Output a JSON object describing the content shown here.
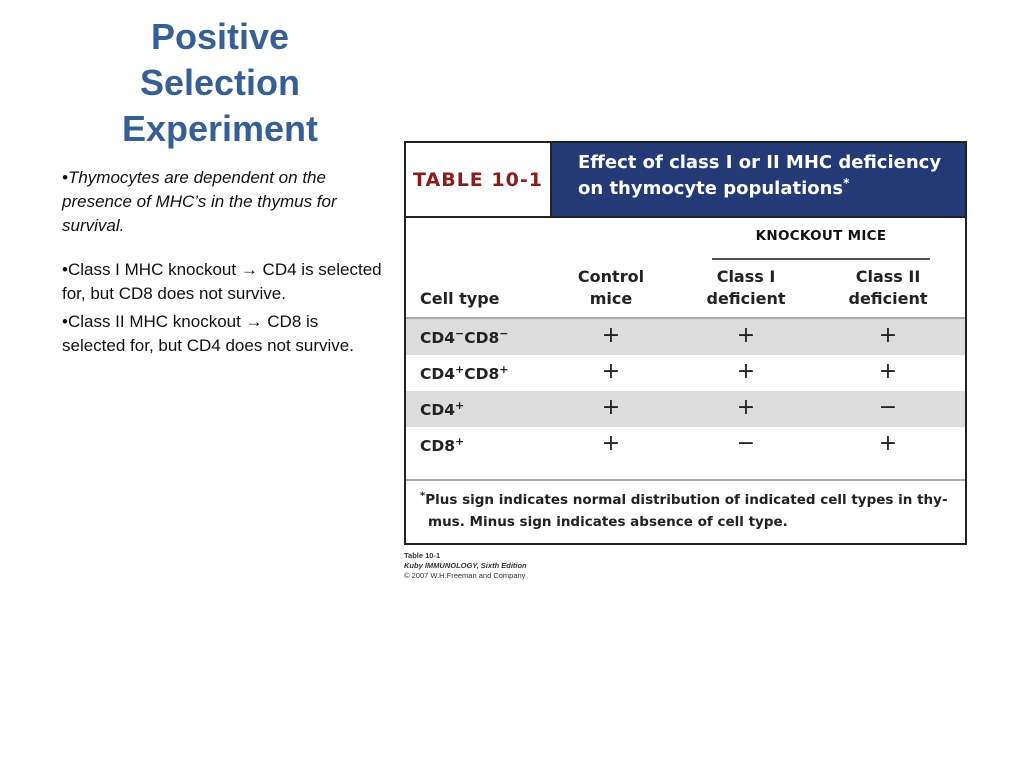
{
  "title": {
    "line1": "Positive",
    "line2": "Selection",
    "line3": "Experiment"
  },
  "bullets": [
    "•Thymocytes are dependent on the presence of MHC’s in the thymus for survival.",
    "•Class I MHC knockout → CD4 is selected for, but CD8 does not survive.",
    "•Class II MHC knockout → CD8 is selected for, but CD4 does not survive."
  ],
  "table": {
    "label": "TABLE 10-1",
    "caption_line1": "Effect of class I or II MHC deficiency",
    "caption_line2": "on thymocyte populations",
    "caption_mark": "*",
    "group_header": "KNOCKOUT MICE",
    "col_cell_type": "Cell type",
    "col_control": [
      "Control",
      "mice"
    ],
    "col_class1": [
      "Class I",
      "deficient"
    ],
    "col_class2": [
      "Class II",
      "deficient"
    ],
    "rows": [
      {
        "base1": "CD4",
        "sup1": "−",
        "base2": "CD8",
        "sup2": "−",
        "control": "+",
        "class1": "+",
        "class2": "+"
      },
      {
        "base1": "CD4",
        "sup1": "+",
        "base2": "CD8",
        "sup2": "+",
        "control": "+",
        "class1": "+",
        "class2": "+"
      },
      {
        "base1": "CD4",
        "sup1": "+",
        "base2": "",
        "sup2": "",
        "control": "+",
        "class1": "+",
        "class2": "−"
      },
      {
        "base1": "CD8",
        "sup1": "+",
        "base2": "",
        "sup2": "",
        "control": "+",
        "class1": "−",
        "class2": "+"
      }
    ],
    "footnote_mark": "*",
    "footnote_line1": "Plus sign indicates normal distribution of indicated cell types in thy-",
    "footnote_line2": "mus. Minus sign indicates absence of cell type."
  },
  "credit": {
    "line1": "Table 10-1",
    "line2": "Kuby IMMUNOLOGY, Sixth Edition",
    "line3": "© 2007 W.H.Freeman and Company"
  },
  "colors": {
    "title": "#355f95",
    "table_header_bg": "#233a76",
    "table_label": "#8b1c1c",
    "row_shade": "#dcdcdc"
  }
}
